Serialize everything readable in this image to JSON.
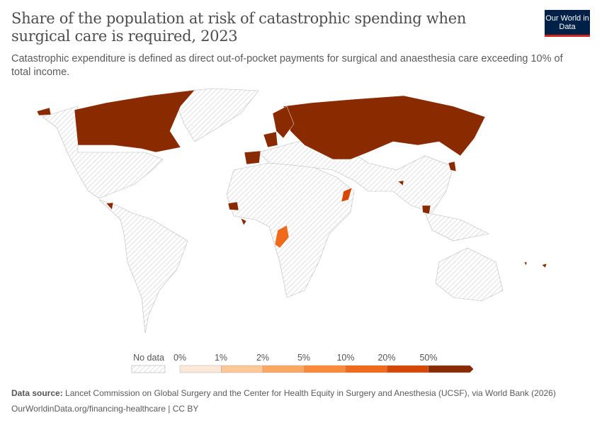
{
  "header": {
    "title": "Share of the population at risk of catastrophic spending when surgical care is required, 2023",
    "subtitle": "Catastrophic expenditure is defined as direct out-of-pocket payments for surgical and anaesthesia care exceeding 10% of total income.",
    "logo": "Our World in Data"
  },
  "legend": {
    "no_data_label": "No data",
    "ticks": [
      "0%",
      "1%",
      "2%",
      "5%",
      "10%",
      "20%",
      "50%"
    ],
    "colors": [
      "#fde9d9",
      "#fdc796",
      "#fca862",
      "#f98a3a",
      "#f06a1c",
      "#d64705",
      "#8a2a00"
    ],
    "no_data_color": "#e0e0e0"
  },
  "footer": {
    "source_label": "Data source:",
    "source": "Lancet Commission on Global Surgery and the Center for Health Equity in Surgery and Anesthesia (UCSF), via World Bank (2026)",
    "link": "OurWorldinData.org/financing-healthcare",
    "license": "CC BY"
  }
}
